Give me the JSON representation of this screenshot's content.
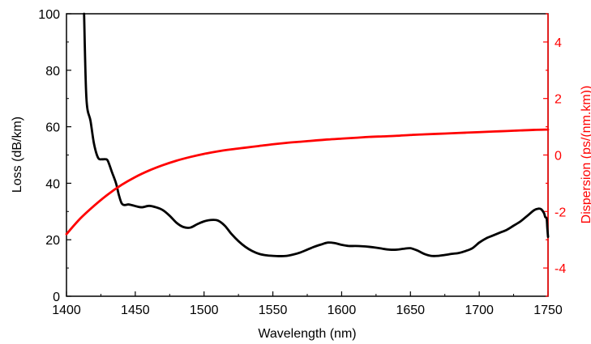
{
  "chart_data": {
    "type": "line",
    "title": "",
    "xlabel": "Wavelength (nm)",
    "ylabel": "Loss (dB/km)",
    "y2label": "Dispersion (ps/(nm.km))",
    "xlim": [
      1400,
      1750
    ],
    "ylim": [
      0,
      100
    ],
    "y2lim": [
      -5,
      5
    ],
    "x_ticks": [
      "1400",
      "1450",
      "1500",
      "1550",
      "1600",
      "1650",
      "1700",
      "1750"
    ],
    "y_ticks": [
      "0",
      "20",
      "40",
      "60",
      "80",
      "100"
    ],
    "y2_ticks": [
      "-4",
      "-2",
      "0",
      "2",
      "4"
    ],
    "grid": false,
    "legend": "none",
    "series": [
      {
        "axis": "left",
        "color": "#000000",
        "x": [
          1412.8,
          1414.5,
          1417.5,
          1420,
          1423,
          1426,
          1428,
          1430,
          1433,
          1436,
          1438,
          1440,
          1442,
          1445,
          1448,
          1451,
          1455,
          1460,
          1465,
          1470,
          1475,
          1480,
          1485,
          1490,
          1495,
          1500,
          1505,
          1510,
          1515,
          1520,
          1525,
          1530,
          1535,
          1540,
          1545,
          1550,
          1555,
          1560,
          1565,
          1570,
          1575,
          1580,
          1585,
          1590,
          1595,
          1600,
          1605,
          1610,
          1615,
          1620,
          1625,
          1630,
          1635,
          1640,
          1645,
          1650,
          1655,
          1660,
          1665,
          1670,
          1675,
          1680,
          1685,
          1690,
          1695,
          1700,
          1705,
          1710,
          1715,
          1720,
          1725,
          1730,
          1735,
          1740,
          1743,
          1745,
          1747,
          1748,
          1749,
          1749.5,
          1750
        ],
        "values": [
          100,
          70,
          62,
          54,
          49,
          48.5,
          48.5,
          48,
          44,
          40,
          36,
          33,
          32.3,
          32.5,
          32.2,
          31.8,
          31.5,
          32,
          31.5,
          30.5,
          28.5,
          26,
          24.5,
          24.3,
          25.5,
          26.5,
          27,
          26.8,
          25,
          22,
          19.5,
          17.5,
          16,
          15,
          14.5,
          14.3,
          14.2,
          14.3,
          14.8,
          15.5,
          16.5,
          17.5,
          18.3,
          19,
          18.8,
          18.2,
          17.8,
          17.8,
          17.7,
          17.5,
          17.2,
          16.8,
          16.5,
          16.5,
          16.8,
          17,
          16.2,
          15,
          14.3,
          14.3,
          14.6,
          15,
          15.3,
          16,
          17,
          19,
          20.5,
          21.5,
          22.5,
          23.5,
          25,
          26.5,
          28.5,
          30.5,
          31,
          30.8,
          29.5,
          28,
          27.5,
          24,
          21
        ]
      },
      {
        "axis": "right",
        "color": "#ff0000",
        "x": [
          1400,
          1410,
          1420,
          1430,
          1440,
          1450,
          1460,
          1470,
          1480,
          1490,
          1500,
          1510,
          1520,
          1530,
          1540,
          1550,
          1560,
          1570,
          1580,
          1590,
          1600,
          1610,
          1620,
          1630,
          1640,
          1650,
          1660,
          1670,
          1680,
          1690,
          1700,
          1710,
          1720,
          1730,
          1740,
          1750
        ],
        "values": [
          -2.8,
          -2.25,
          -1.8,
          -1.4,
          -1.06,
          -0.78,
          -0.55,
          -0.36,
          -0.2,
          -0.07,
          0.04,
          0.13,
          0.2,
          0.26,
          0.32,
          0.38,
          0.43,
          0.47,
          0.51,
          0.55,
          0.58,
          0.61,
          0.64,
          0.66,
          0.68,
          0.71,
          0.73,
          0.75,
          0.77,
          0.79,
          0.81,
          0.83,
          0.85,
          0.87,
          0.89,
          0.9
        ]
      }
    ]
  }
}
